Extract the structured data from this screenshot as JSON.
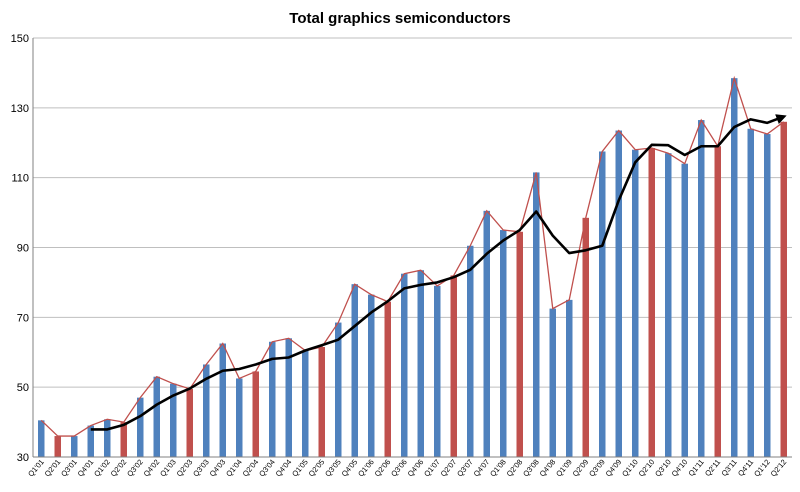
{
  "chart_data": {
    "type": "bar",
    "title": "Total graphics semiconductors",
    "xlabel": "",
    "ylabel": "",
    "ylim": [
      30,
      150
    ],
    "yticks": [
      30,
      50,
      70,
      90,
      110,
      130,
      150
    ],
    "grid": true,
    "legend": "none",
    "colors": {
      "blue": "#4f81bd",
      "red": "#c0504d",
      "trend": "#000000",
      "line": "#c0504d"
    },
    "categories": [
      "Q1'01",
      "Q2'01",
      "Q3'01",
      "Q4'01",
      "Q1'02",
      "Q2'02",
      "Q3'02",
      "Q4'02",
      "Q1'03",
      "Q2'03",
      "Q3'03",
      "Q4'03",
      "Q1'04",
      "Q2'04",
      "Q3'04",
      "Q4'04",
      "Q1'05",
      "Q2'05",
      "Q3'05",
      "Q4'05",
      "Q1'06",
      "Q2'06",
      "Q3'06",
      "Q4'06",
      "Q1'07",
      "Q2'07",
      "Q3'07",
      "Q4'07",
      "Q1'08",
      "Q2'08",
      "Q3'08",
      "Q4'08",
      "Q1'09",
      "Q2'09",
      "Q3'09",
      "Q4'09",
      "Q1'10",
      "Q2'10",
      "Q3'10",
      "Q4'10",
      "Q1'11",
      "Q2'11",
      "Q3'11",
      "Q4'11",
      "Q1'12",
      "Q2'12"
    ],
    "series": [
      {
        "values": [
          40.5,
          36,
          36,
          39,
          40.8,
          40,
          47,
          53,
          51,
          49.5,
          56.5,
          62.5,
          52.5,
          54.5,
          63,
          64,
          60.5,
          61.5,
          68.5,
          79.5,
          76.5,
          74.5,
          82.5,
          83.5,
          79,
          82,
          90.5,
          100.5,
          95,
          94.5,
          111.5,
          72.5,
          75,
          98.5,
          117.5,
          123.5,
          118,
          118.5,
          117,
          114,
          126.5,
          119,
          138.5,
          124,
          122.5,
          126
        ],
        "bar_colors": [
          "blue",
          "red",
          "blue",
          "blue",
          "blue",
          "red",
          "blue",
          "blue",
          "blue",
          "red",
          "blue",
          "blue",
          "blue",
          "red",
          "blue",
          "blue",
          "blue",
          "red",
          "blue",
          "blue",
          "blue",
          "red",
          "blue",
          "blue",
          "blue",
          "red",
          "blue",
          "blue",
          "blue",
          "red",
          "blue",
          "blue",
          "blue",
          "red",
          "blue",
          "blue",
          "blue",
          "red",
          "blue",
          "blue",
          "blue",
          "red",
          "blue",
          "blue",
          "blue",
          "red"
        ]
      },
      {
        "type": "line",
        "values": [
          null,
          null,
          null,
          37.9,
          37.9,
          39.2,
          41.7,
          45,
          47.6,
          49.6,
          52.4,
          54.7,
          55.2,
          56.5,
          58.1,
          58.5,
          60.5,
          62,
          63.6,
          67.5,
          71.4,
          74.6,
          78.3,
          79.3,
          80,
          81.5,
          83.6,
          88.2,
          92,
          95,
          100.3,
          93.4,
          88.4,
          89.2,
          90.5,
          103.5,
          114.4,
          119.4,
          119.3,
          116.5,
          119,
          119,
          124.5,
          126.7,
          125.7,
          127.5
        ]
      }
    ]
  }
}
